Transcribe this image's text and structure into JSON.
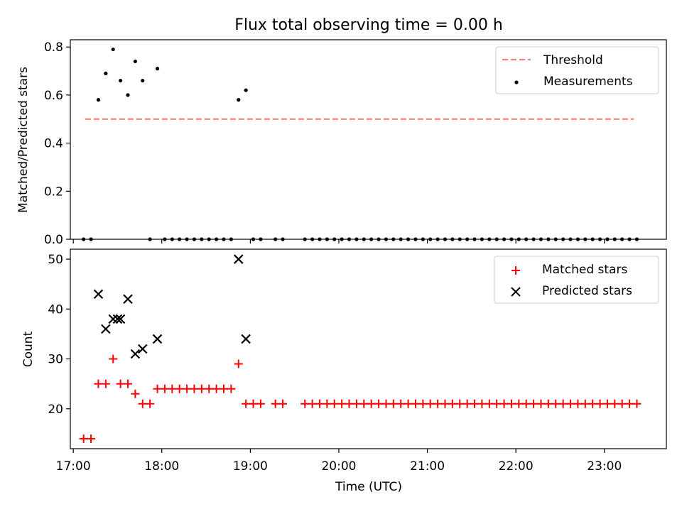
{
  "title": "Flux total observing time = 0.00 h",
  "chart_data": [
    {
      "type": "scatter",
      "ylabel": "Matched/Predicted stars",
      "ylim": [
        0,
        0.83
      ],
      "yticks": [
        "0.0",
        "0.2",
        "0.4",
        "0.6",
        "0.8"
      ],
      "ytick_values": [
        0,
        0.2,
        0.4,
        0.6,
        0.8
      ],
      "threshold": {
        "name": "Threshold",
        "value": 0.5,
        "x_start": "17:08",
        "x_end": "23:20",
        "color": "#ff7f7f"
      },
      "legend": [
        "Threshold",
        "Measurements"
      ],
      "legend_position": "top-right",
      "series": [
        {
          "name": "Measurements",
          "color": "#000000",
          "x": [
            "17:07",
            "17:12",
            "17:17",
            "17:22",
            "17:27",
            "17:32",
            "17:37",
            "17:42",
            "17:47",
            "17:52",
            "17:57",
            "18:02",
            "18:07",
            "18:12",
            "18:17",
            "18:22",
            "18:27",
            "18:32",
            "18:37",
            "18:42",
            "18:47",
            "18:52",
            "18:57",
            "19:02",
            "19:07",
            "19:17",
            "19:22",
            "19:37",
            "19:42",
            "19:47",
            "19:52",
            "19:57",
            "20:02",
            "20:07",
            "20:12",
            "20:17",
            "20:22",
            "20:27",
            "20:32",
            "20:37",
            "20:42",
            "20:47",
            "20:52",
            "20:57",
            "21:02",
            "21:07",
            "21:12",
            "21:17",
            "21:22",
            "21:27",
            "21:32",
            "21:37",
            "21:42",
            "21:47",
            "21:52",
            "21:57",
            "22:02",
            "22:07",
            "22:12",
            "22:17",
            "22:22",
            "22:27",
            "22:32",
            "22:37",
            "22:42",
            "22:47",
            "22:52",
            "22:57",
            "23:02",
            "23:07",
            "23:12",
            "23:17",
            "23:22"
          ],
          "y": [
            0,
            0,
            0.58,
            0.69,
            0.79,
            0.66,
            0.6,
            0.74,
            0.66,
            0,
            0.71,
            0,
            0,
            0,
            0,
            0,
            0,
            0,
            0,
            0,
            0,
            0.58,
            0.62,
            0,
            0,
            0,
            0,
            0,
            0,
            0,
            0,
            0,
            0,
            0,
            0,
            0,
            0,
            0,
            0,
            0,
            0,
            0,
            0,
            0,
            0,
            0,
            0,
            0,
            0,
            0,
            0,
            0,
            0,
            0,
            0,
            0,
            0,
            0,
            0,
            0,
            0,
            0,
            0,
            0,
            0,
            0,
            0,
            0,
            0,
            0,
            0,
            0,
            0
          ]
        }
      ]
    },
    {
      "type": "scatter",
      "xlabel": "Time (UTC)",
      "ylabel": "Count",
      "xlim": [
        "16:58",
        "23:42"
      ],
      "xticks": [
        "17:00",
        "18:00",
        "19:00",
        "20:00",
        "21:00",
        "22:00",
        "23:00"
      ],
      "ylim": [
        12,
        52
      ],
      "yticks": [
        "20",
        "30",
        "40",
        "50"
      ],
      "ytick_values": [
        20,
        30,
        40,
        50
      ],
      "legend": [
        "Matched stars",
        "Predicted stars"
      ],
      "legend_position": "top-right",
      "series": [
        {
          "name": "Matched stars",
          "marker": "plus",
          "color": "#ff0000",
          "x": [
            "17:07",
            "17:12",
            "17:17",
            "17:22",
            "17:27",
            "17:32",
            "17:37",
            "17:42",
            "17:47",
            "17:52",
            "17:57",
            "18:02",
            "18:07",
            "18:12",
            "18:17",
            "18:22",
            "18:27",
            "18:32",
            "18:37",
            "18:42",
            "18:47",
            "18:52",
            "18:57",
            "19:02",
            "19:07",
            "19:17",
            "19:22",
            "19:37",
            "19:42",
            "19:47",
            "19:52",
            "19:57",
            "20:02",
            "20:07",
            "20:12",
            "20:17",
            "20:22",
            "20:27",
            "20:32",
            "20:37",
            "20:42",
            "20:47",
            "20:52",
            "20:57",
            "21:02",
            "21:07",
            "21:12",
            "21:17",
            "21:22",
            "21:27",
            "21:32",
            "21:37",
            "21:42",
            "21:47",
            "21:52",
            "21:57",
            "22:02",
            "22:07",
            "22:12",
            "22:17",
            "22:22",
            "22:27",
            "22:32",
            "22:37",
            "22:42",
            "22:47",
            "22:52",
            "22:57",
            "23:02",
            "23:07",
            "23:12",
            "23:17",
            "23:22"
          ],
          "y": [
            14,
            14,
            25,
            25,
            30,
            25,
            25,
            23,
            21,
            21,
            24,
            24,
            24,
            24,
            24,
            24,
            24,
            24,
            24,
            24,
            24,
            29,
            21,
            21,
            21,
            21,
            21,
            21,
            21,
            21,
            21,
            21,
            21,
            21,
            21,
            21,
            21,
            21,
            21,
            21,
            21,
            21,
            21,
            21,
            21,
            21,
            21,
            21,
            21,
            21,
            21,
            21,
            21,
            21,
            21,
            21,
            21,
            21,
            21,
            21,
            21,
            21,
            21,
            21,
            21,
            21,
            21,
            21,
            21,
            21,
            21,
            21,
            21
          ]
        },
        {
          "name": "Predicted stars",
          "marker": "x",
          "color": "#000000",
          "x": [
            "17:17",
            "17:22",
            "17:27",
            "17:30",
            "17:32",
            "17:37",
            "17:42",
            "17:47",
            "17:57",
            "18:52",
            "18:57"
          ],
          "y": [
            43,
            36,
            38,
            38,
            38,
            42,
            31,
            32,
            34,
            50,
            34
          ]
        }
      ]
    }
  ]
}
